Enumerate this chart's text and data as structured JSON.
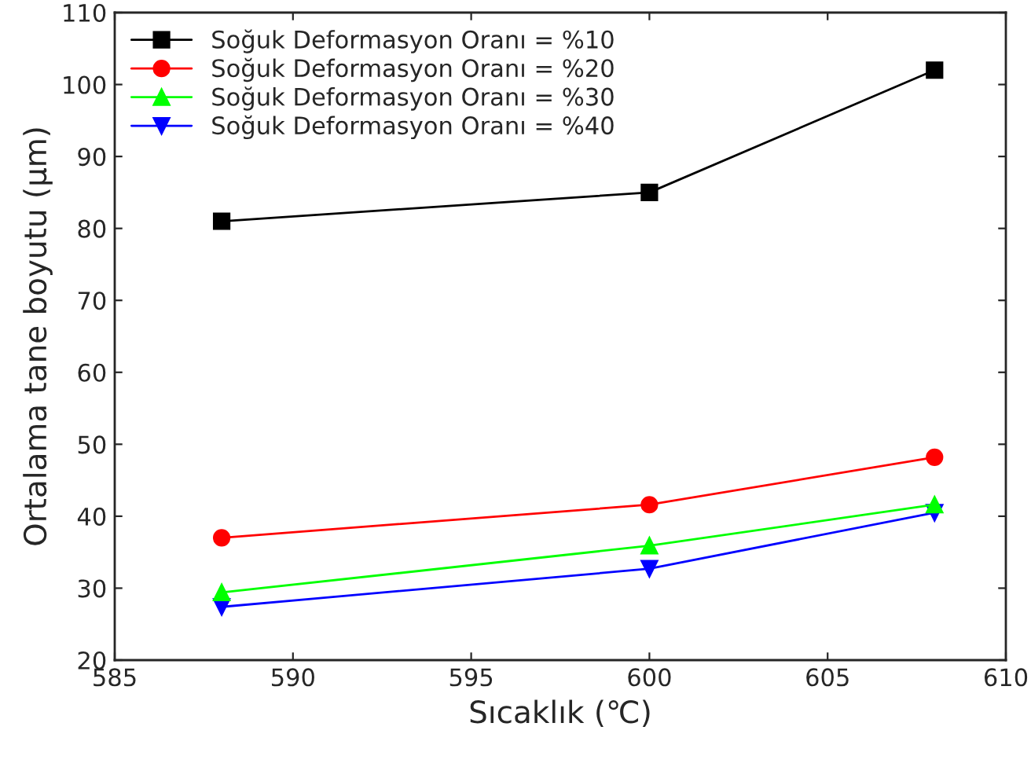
{
  "chart_data": {
    "type": "line",
    "xlabel": "Sıcaklık (℃)",
    "ylabel": "Ortalama tane boyutu (µm)",
    "x": [
      588,
      600,
      608
    ],
    "series": [
      {
        "name": "Soğuk Deformasyon Oranı = %10",
        "color": "#000000",
        "marker": "square",
        "values": [
          81,
          85,
          102
        ]
      },
      {
        "name": "Soğuk Deformasyon Oranı = %20",
        "color": "#ff0000",
        "marker": "circle",
        "values": [
          37,
          41.6,
          48.2
        ]
      },
      {
        "name": "Soğuk Deformasyon Oranı = %30",
        "color": "#00ff00",
        "marker": "triangle",
        "values": [
          29.4,
          35.9,
          41.6
        ]
      },
      {
        "name": "Soğuk Deformasyon Oranı = %40",
        "color": "#0000ff",
        "marker": "triangle_down",
        "values": [
          27.4,
          32.7,
          40.5
        ]
      }
    ],
    "xlim": [
      585,
      610
    ],
    "xticks": [
      585,
      590,
      595,
      600,
      605,
      610
    ],
    "ylim": [
      20,
      110
    ],
    "yticks": [
      20,
      30,
      40,
      50,
      60,
      70,
      80,
      90,
      100,
      110
    ],
    "grid": false,
    "legend": "top left",
    "line_style": "solid"
  }
}
